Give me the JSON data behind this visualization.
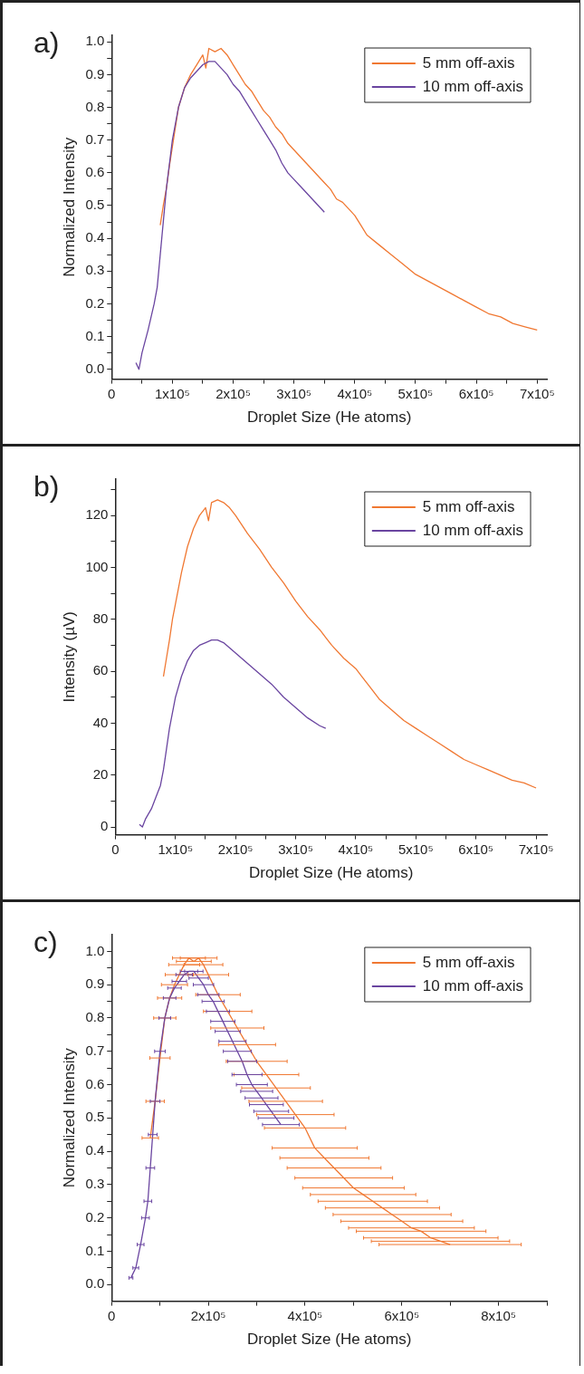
{
  "chart_data": [
    {
      "type": "line",
      "title": "a)",
      "xlabel": "Droplet Size (He atoms)",
      "ylabel": "Normalized Intensity",
      "xlim": [
        0,
        716000
      ],
      "ylim": [
        -0.03,
        1.02
      ],
      "legend": "top right",
      "line_style": "solid",
      "xticks": [
        {
          "value": 0,
          "label": "0"
        },
        {
          "value": 50000,
          "label": null
        },
        {
          "value": 100000,
          "label": "1x10⁵"
        },
        {
          "value": 150000,
          "label": null
        },
        {
          "value": 200000,
          "label": "2x10⁵"
        },
        {
          "value": 250000,
          "label": null
        },
        {
          "value": 300000,
          "label": "3x10⁵"
        },
        {
          "value": 350000,
          "label": null
        },
        {
          "value": 400000,
          "label": "4x10⁵"
        },
        {
          "value": 450000,
          "label": null
        },
        {
          "value": 500000,
          "label": "5x10⁵"
        },
        {
          "value": 550000,
          "label": null
        },
        {
          "value": 600000,
          "label": "6x10⁵"
        },
        {
          "value": 650000,
          "label": null
        },
        {
          "value": 700000,
          "label": "7x10⁵"
        }
      ],
      "yticks": [
        {
          "value": 0,
          "label": "0.0"
        },
        {
          "value": 0.05,
          "label": null
        },
        0.1,
        {
          "value": 0.15,
          "label": null
        },
        0.2,
        {
          "value": 0.25,
          "label": null
        },
        0.3,
        {
          "value": 0.35,
          "label": null
        },
        0.4,
        {
          "value": 0.45,
          "label": null
        },
        0.5,
        {
          "value": 0.55,
          "label": null
        },
        0.6,
        {
          "value": 0.65,
          "label": null
        },
        0.7,
        {
          "value": 0.75,
          "label": null
        },
        0.8,
        {
          "value": 0.85,
          "label": null
        },
        0.9,
        {
          "value": 0.95,
          "label": null
        },
        {
          "value": 1,
          "label": "1.0"
        }
      ],
      "series": [
        {
          "name": "5 mm off-axis",
          "color": "#f07832",
          "x": [
            80000,
            85000,
            90000,
            95000,
            100000,
            110000,
            120000,
            130000,
            140000,
            150000,
            155000,
            160000,
            170000,
            180000,
            190000,
            200000,
            210000,
            220000,
            230000,
            240000,
            250000,
            260000,
            270000,
            280000,
            290000,
            300000,
            310000,
            320000,
            330000,
            340000,
            350000,
            360000,
            370000,
            380000,
            390000,
            400000,
            410000,
            420000,
            440000,
            460000,
            480000,
            500000,
            520000,
            540000,
            560000,
            580000,
            600000,
            620000,
            640000,
            660000,
            680000,
            700000
          ],
          "values": [
            0.44,
            0.5,
            0.55,
            0.62,
            0.68,
            0.8,
            0.86,
            0.9,
            0.93,
            0.96,
            0.92,
            0.98,
            0.97,
            0.98,
            0.96,
            0.93,
            0.9,
            0.87,
            0.85,
            0.82,
            0.79,
            0.77,
            0.74,
            0.72,
            0.69,
            0.67,
            0.65,
            0.63,
            0.61,
            0.59,
            0.57,
            0.55,
            0.52,
            0.51,
            0.49,
            0.47,
            0.44,
            0.41,
            0.38,
            0.35,
            0.32,
            0.29,
            0.27,
            0.25,
            0.23,
            0.21,
            0.19,
            0.17,
            0.16,
            0.14,
            0.13,
            0.12
          ]
        },
        {
          "name": "10 mm off-axis",
          "color": "#6a45a0",
          "x": [
            40000,
            45000,
            50000,
            60000,
            70000,
            75000,
            80000,
            85000,
            90000,
            100000,
            110000,
            120000,
            130000,
            140000,
            150000,
            160000,
            170000,
            180000,
            190000,
            200000,
            210000,
            220000,
            230000,
            240000,
            250000,
            260000,
            270000,
            280000,
            290000,
            300000,
            310000,
            320000,
            330000,
            340000,
            350000
          ],
          "values": [
            0.02,
            0.0,
            0.05,
            0.12,
            0.2,
            0.25,
            0.35,
            0.45,
            0.55,
            0.7,
            0.8,
            0.86,
            0.89,
            0.91,
            0.93,
            0.94,
            0.94,
            0.92,
            0.9,
            0.87,
            0.85,
            0.82,
            0.79,
            0.76,
            0.73,
            0.7,
            0.67,
            0.63,
            0.6,
            0.58,
            0.56,
            0.54,
            0.52,
            0.5,
            0.48
          ]
        }
      ]
    },
    {
      "type": "line",
      "title": "b)",
      "xlabel": "Droplet Size (He atoms)",
      "ylabel": "Intensity (µV)",
      "xlim": [
        0,
        718000
      ],
      "ylim": [
        -3,
        134
      ],
      "legend": "top right",
      "line_style": "solid",
      "xticks": [
        {
          "value": 0,
          "label": "0"
        },
        {
          "value": 50000,
          "label": null
        },
        {
          "value": 100000,
          "label": "1x10⁵"
        },
        {
          "value": 150000,
          "label": null
        },
        {
          "value": 200000,
          "label": "2x10⁵"
        },
        {
          "value": 250000,
          "label": null
        },
        {
          "value": 300000,
          "label": "3x10⁵"
        },
        {
          "value": 350000,
          "label": null
        },
        {
          "value": 400000,
          "label": "4x10⁵"
        },
        {
          "value": 450000,
          "label": null
        },
        {
          "value": 500000,
          "label": "5x10⁵"
        },
        {
          "value": 550000,
          "label": null
        },
        {
          "value": 600000,
          "label": "6x10⁵"
        },
        {
          "value": 650000,
          "label": null
        },
        {
          "value": 700000,
          "label": "7x10⁵"
        }
      ],
      "yticks": [
        0,
        {
          "value": 10,
          "label": null
        },
        20,
        {
          "value": 30,
          "label": null
        },
        40,
        {
          "value": 50,
          "label": null
        },
        60,
        {
          "value": 70,
          "label": null
        },
        80,
        {
          "value": 90,
          "label": null
        },
        100,
        {
          "value": 110,
          "label": null
        },
        120,
        {
          "value": 130,
          "label": null
        }
      ],
      "series": [
        {
          "name": "5 mm off-axis",
          "color": "#f07832",
          "x": [
            80000,
            85000,
            90000,
            95000,
            100000,
            110000,
            120000,
            130000,
            140000,
            150000,
            155000,
            160000,
            170000,
            180000,
            190000,
            200000,
            220000,
            240000,
            260000,
            280000,
            300000,
            320000,
            340000,
            350000,
            360000,
            380000,
            400000,
            410000,
            420000,
            440000,
            460000,
            480000,
            500000,
            520000,
            540000,
            560000,
            580000,
            600000,
            620000,
            640000,
            660000,
            680000,
            700000
          ],
          "values": [
            58,
            65,
            72,
            80,
            86,
            98,
            108,
            115,
            120,
            123,
            118,
            125,
            126,
            125,
            123,
            120,
            113,
            107,
            100,
            94,
            87,
            81,
            76,
            73,
            70,
            65,
            61,
            58,
            55,
            49,
            45,
            41,
            38,
            35,
            32,
            29,
            26,
            24,
            22,
            20,
            18,
            17,
            15
          ]
        },
        {
          "name": "10 mm off-axis",
          "color": "#6a45a0",
          "x": [
            40000,
            45000,
            50000,
            60000,
            70000,
            75000,
            80000,
            85000,
            90000,
            100000,
            110000,
            120000,
            130000,
            140000,
            150000,
            160000,
            170000,
            180000,
            190000,
            200000,
            220000,
            240000,
            260000,
            280000,
            300000,
            320000,
            340000,
            350000
          ],
          "values": [
            1,
            0,
            3,
            7,
            13,
            16,
            22,
            30,
            38,
            50,
            58,
            64,
            68,
            70,
            71,
            72,
            72,
            71,
            69,
            67,
            63,
            59,
            55,
            50,
            46,
            42,
            39,
            38
          ]
        }
      ]
    },
    {
      "type": "line",
      "title": "c)",
      "xlabel": "Droplet Size (He atoms)",
      "ylabel": "Normalized Intensity",
      "xlim": [
        0,
        900000
      ],
      "ylim": [
        -0.05,
        1.05
      ],
      "legend": "top right",
      "line_style": "solid",
      "xticks": [
        {
          "value": 0,
          "label": "0"
        },
        {
          "value": 100000,
          "label": null
        },
        {
          "value": 200000,
          "label": "2x10⁵"
        },
        {
          "value": 300000,
          "label": null
        },
        {
          "value": 400000,
          "label": "4x10⁵"
        },
        {
          "value": 500000,
          "label": null
        },
        {
          "value": 600000,
          "label": "6x10⁵"
        },
        {
          "value": 700000,
          "label": null
        },
        {
          "value": 800000,
          "label": "8x10⁵"
        },
        {
          "value": 900000,
          "label": null
        }
      ],
      "yticks": [
        {
          "value": 0,
          "label": "0.0"
        },
        {
          "value": 0.05,
          "label": null
        },
        0.1,
        {
          "value": 0.15,
          "label": null
        },
        0.2,
        {
          "value": 0.25,
          "label": null
        },
        0.3,
        {
          "value": 0.35,
          "label": null
        },
        0.4,
        {
          "value": 0.45,
          "label": null
        },
        0.5,
        {
          "value": 0.55,
          "label": null
        },
        0.6,
        {
          "value": 0.65,
          "label": null
        },
        0.7,
        {
          "value": 0.75,
          "label": null
        },
        0.8,
        {
          "value": 0.85,
          "label": null
        },
        0.9,
        {
          "value": 0.95,
          "label": null
        },
        {
          "value": 1,
          "label": "1.0"
        }
      ],
      "series": [
        {
          "name": "5 mm off-axis",
          "color": "#f07832",
          "x": [
            80000,
            90000,
            100000,
            110000,
            120000,
            130000,
            140000,
            150000,
            160000,
            170000,
            180000,
            190000,
            200000,
            220000,
            240000,
            260000,
            280000,
            300000,
            320000,
            340000,
            360000,
            380000,
            400000,
            420000,
            440000,
            460000,
            480000,
            500000,
            520000,
            540000,
            560000,
            580000,
            600000,
            620000,
            640000,
            660000,
            680000,
            700000
          ],
          "values": [
            0.44,
            0.55,
            0.68,
            0.8,
            0.86,
            0.9,
            0.93,
            0.96,
            0.98,
            0.97,
            0.98,
            0.96,
            0.93,
            0.87,
            0.82,
            0.77,
            0.72,
            0.67,
            0.63,
            0.59,
            0.55,
            0.51,
            0.47,
            0.41,
            0.38,
            0.35,
            0.32,
            0.29,
            0.27,
            0.25,
            0.23,
            0.21,
            0.19,
            0.17,
            0.16,
            0.14,
            0.13,
            0.12
          ],
          "xerrors": [
            17000,
            19000,
            21000,
            23000,
            25000,
            27000,
            29000,
            32000,
            34000,
            36000,
            38000,
            40000,
            42000,
            46000,
            50000,
            55000,
            59000,
            63000,
            67000,
            71000,
            76000,
            80000,
            84000,
            88000,
            92000,
            97000,
            101000,
            105000,
            109000,
            113000,
            118000,
            122000,
            126000,
            130000,
            134000,
            139000,
            143000,
            147000
          ]
        },
        {
          "name": "10 mm off-axis",
          "color": "#6a45a0",
          "x": [
            40000,
            50000,
            60000,
            70000,
            75000,
            80000,
            85000,
            90000,
            100000,
            110000,
            120000,
            130000,
            140000,
            150000,
            160000,
            170000,
            180000,
            190000,
            200000,
            210000,
            220000,
            230000,
            240000,
            250000,
            260000,
            270000,
            280000,
            290000,
            300000,
            310000,
            320000,
            330000,
            340000,
            350000
          ],
          "values": [
            0.02,
            0.05,
            0.12,
            0.2,
            0.25,
            0.35,
            0.45,
            0.55,
            0.7,
            0.8,
            0.86,
            0.89,
            0.91,
            0.93,
            0.94,
            0.94,
            0.92,
            0.9,
            0.87,
            0.85,
            0.82,
            0.79,
            0.76,
            0.73,
            0.7,
            0.67,
            0.63,
            0.6,
            0.58,
            0.56,
            0.54,
            0.52,
            0.5,
            0.48
          ],
          "xerrors": [
            4000,
            6000,
            7000,
            8000,
            8000,
            9000,
            9000,
            10000,
            11000,
            12000,
            13000,
            14000,
            15000,
            17000,
            18000,
            19000,
            20000,
            21000,
            22000,
            23000,
            24000,
            25000,
            26000,
            28000,
            29000,
            30000,
            31000,
            32000,
            33000,
            34000,
            35000,
            36000,
            37000,
            38000
          ]
        }
      ]
    }
  ]
}
